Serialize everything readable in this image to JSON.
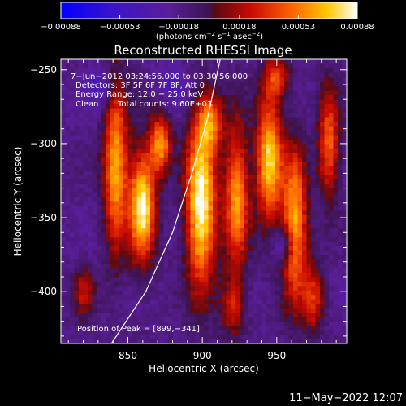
{
  "app": {
    "timestamp": "11−May−2022 12:07"
  },
  "chart_data": {
    "type": "heatmap",
    "title": "Reconstructed RHESSI Image",
    "xlabel": "Heliocentric X (arcsec)",
    "ylabel": "Heliocentric Y (arcsec)",
    "xlim": [
      805,
      997
    ],
    "ylim": [
      -435,
      -243
    ],
    "x_ticks": [
      850,
      900,
      950
    ],
    "x_tick_labels": [
      "850",
      "900",
      "950"
    ],
    "y_ticks": [
      -250,
      -300,
      -350,
      -400
    ],
    "y_tick_labels": [
      "−250",
      "−300",
      "−350",
      "−400"
    ],
    "colorbar": {
      "range": [
        -0.00088,
        0.00088
      ],
      "ticks": [
        -0.00088,
        -0.00053,
        -0.00018,
        0.00018,
        0.00053,
        0.00088
      ],
      "tick_labels": [
        "−0.00088",
        "−0.00053",
        "−0.00018",
        "0.00018",
        "0.00053",
        "0.00088"
      ],
      "unit_prefix": "(photons cm",
      "unit_exp1": "−2",
      "unit_mid": " s",
      "unit_exp2": "−1",
      "unit_mid2": " asec",
      "unit_exp3": "−2",
      "unit_suffix": ")"
    },
    "annotations": [
      "7−Jun−2012 03:24:56.000 to 03:30:56.000",
      "Detectors: 3F 5F 6F 7F 8F, Att 0",
      "Energy Range: 12.0 − 25.0 keV",
      "Clean",
      "Total counts: 9.60E+03"
    ],
    "peak_label": "Position of Peak = [899,−341]",
    "peak": {
      "x": 899,
      "y": -341
    },
    "limb_curve": [
      {
        "x": 839,
        "y": -435
      },
      {
        "x": 862,
        "y": -400
      },
      {
        "x": 880,
        "y": -360
      },
      {
        "x": 893,
        "y": -320
      },
      {
        "x": 903,
        "y": -285
      },
      {
        "x": 912,
        "y": -243
      }
    ],
    "sources": [
      {
        "x": 842,
        "y": -315,
        "sx": 6,
        "sy": 40,
        "amp": 0.75
      },
      {
        "x": 860,
        "y": -342,
        "sx": 6,
        "sy": 26,
        "amp": 0.95
      },
      {
        "x": 872,
        "y": -300,
        "sx": 5,
        "sy": 14,
        "amp": 0.7
      },
      {
        "x": 899,
        "y": -341,
        "sx": 7,
        "sy": 38,
        "amp": 1.0
      },
      {
        "x": 905,
        "y": -285,
        "sx": 6,
        "sy": 14,
        "amp": 0.55
      },
      {
        "x": 923,
        "y": -335,
        "sx": 6,
        "sy": 34,
        "amp": 0.72
      },
      {
        "x": 945,
        "y": -310,
        "sx": 6,
        "sy": 30,
        "amp": 0.85
      },
      {
        "x": 962,
        "y": -355,
        "sx": 6,
        "sy": 36,
        "amp": 0.8
      },
      {
        "x": 985,
        "y": -300,
        "sx": 5,
        "sy": 26,
        "amp": 0.6
      },
      {
        "x": 975,
        "y": -405,
        "sx": 5,
        "sy": 16,
        "amp": 0.45
      },
      {
        "x": 920,
        "y": -410,
        "sx": 6,
        "sy": 14,
        "amp": 0.4
      },
      {
        "x": 950,
        "y": -255,
        "sx": 6,
        "sy": 10,
        "amp": 0.45
      },
      {
        "x": 820,
        "y": -400,
        "sx": 5,
        "sy": 12,
        "amp": 0.35
      }
    ],
    "negative_sources": [
      {
        "x": 955,
        "y": -368,
        "sx": 5,
        "sy": 9,
        "amp": 0.6
      },
      {
        "x": 832,
        "y": -262,
        "sx": 6,
        "sy": 10,
        "amp": 0.4
      },
      {
        "x": 880,
        "y": -260,
        "sx": 6,
        "sy": 10,
        "amp": 0.35
      }
    ]
  }
}
